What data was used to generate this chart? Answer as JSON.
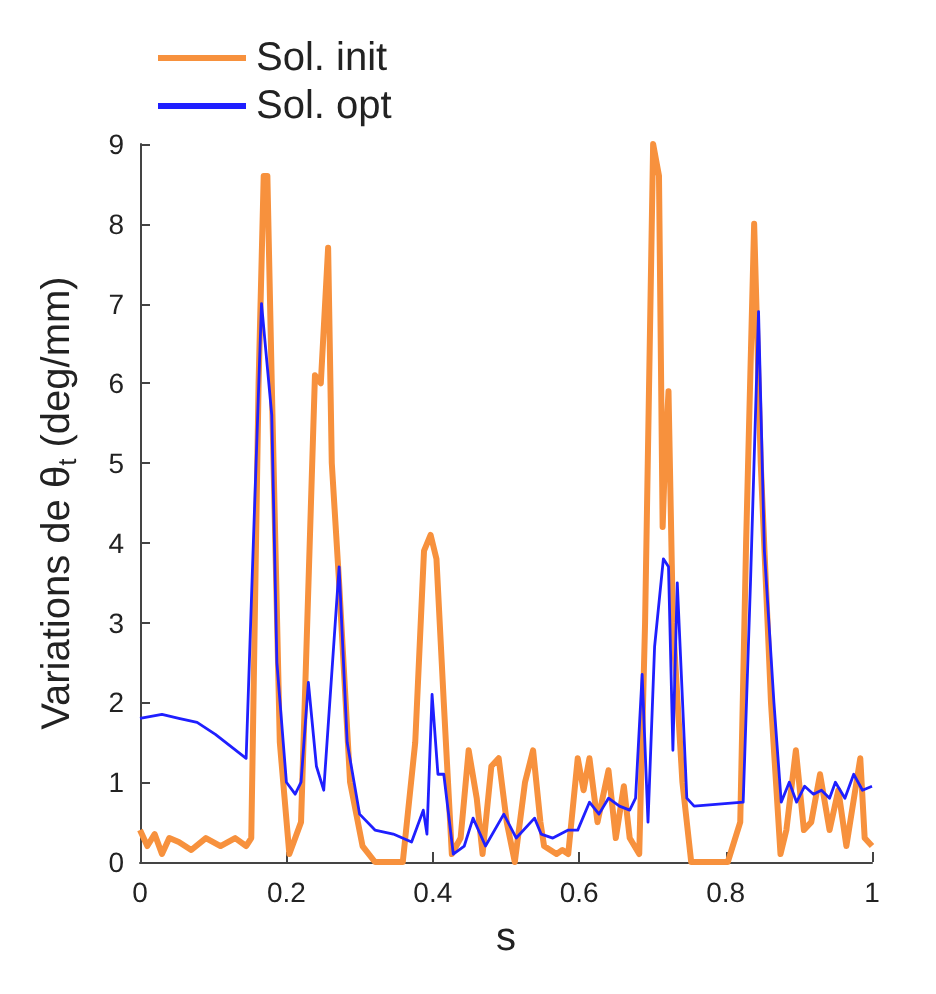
{
  "chart_data": {
    "type": "line",
    "xlabel": "s",
    "ylabel": "Variations de θ$_{t}$ (deg/mm)",
    "xlim": [
      0,
      1
    ],
    "xticks": [
      0,
      0.2,
      0.4,
      0.6,
      0.8,
      1
    ],
    "ylim": [
      0,
      9
    ],
    "yticks": [
      0,
      1,
      2,
      3,
      4,
      5,
      6,
      7,
      8,
      9
    ],
    "grid": false,
    "legend": "top left",
    "marker": "none",
    "line_style": "solid",
    "series": [
      {
        "name": "Sol. init",
        "color": "#f7913d",
        "x": [
          0,
          0.01,
          0.02,
          0.03,
          0.04,
          0.053,
          0.07,
          0.09,
          0.11,
          0.13,
          0.145,
          0.152,
          0.162,
          0.169,
          0.174,
          0.18,
          0.191,
          0.204,
          0.22,
          0.239,
          0.247,
          0.257,
          0.262,
          0.272,
          0.287,
          0.304,
          0.321,
          0.359,
          0.376,
          0.388,
          0.397,
          0.405,
          0.415,
          0.426,
          0.438,
          0.449,
          0.46,
          0.468,
          0.48,
          0.49,
          0.501,
          0.512,
          0.526,
          0.537,
          0.547,
          0.552,
          0.569,
          0.577,
          0.585,
          0.598,
          0.606,
          0.614,
          0.625,
          0.64,
          0.65,
          0.661,
          0.669,
          0.682,
          0.69,
          0.701,
          0.709,
          0.714,
          0.717,
          0.722,
          0.728,
          0.741,
          0.753,
          0.803,
          0.82,
          0.828,
          0.839,
          0.848,
          0.862,
          0.875,
          0.883,
          0.896,
          0.907,
          0.917,
          0.929,
          0.942,
          0.954,
          0.965,
          0.984,
          0.99,
          1
        ],
        "values": [
          0.4,
          0.2,
          0.35,
          0.1,
          0.3,
          0.25,
          0.15,
          0.3,
          0.2,
          0.3,
          0.2,
          0.3,
          6,
          8.6,
          8.6,
          6,
          1.5,
          0.1,
          0.5,
          6.1,
          6,
          7.7,
          5,
          3.5,
          1,
          0.2,
          0,
          0,
          1.5,
          3.9,
          4.1,
          3.8,
          2,
          0.1,
          0.3,
          1.4,
          0.8,
          0.1,
          1.2,
          1.3,
          0.5,
          0,
          1,
          1.4,
          0.5,
          0.2,
          0.1,
          0.15,
          0.1,
          1.3,
          0.9,
          1.3,
          0.5,
          1.15,
          0.3,
          0.95,
          0.3,
          0.1,
          3,
          9,
          8.6,
          4.2,
          5,
          5.9,
          3,
          1,
          0,
          0,
          0.5,
          4,
          8,
          5,
          2,
          0.1,
          0.4,
          1.4,
          0.4,
          0.5,
          1.1,
          0.4,
          0.9,
          0.2,
          1.3,
          0.3,
          0.2
        ]
      },
      {
        "name": "Sol. opt",
        "color": "#1f1fff",
        "x": [
          0,
          0.03,
          0.053,
          0.078,
          0.103,
          0.145,
          0.153,
          0.166,
          0.18,
          0.187,
          0.2,
          0.212,
          0.22,
          0.23,
          0.241,
          0.251,
          0.272,
          0.283,
          0.3,
          0.321,
          0.346,
          0.371,
          0.387,
          0.392,
          0.399,
          0.407,
          0.415,
          0.428,
          0.443,
          0.455,
          0.472,
          0.497,
          0.514,
          0.539,
          0.548,
          0.564,
          0.585,
          0.598,
          0.614,
          0.627,
          0.64,
          0.655,
          0.669,
          0.677,
          0.686,
          0.694,
          0.703,
          0.715,
          0.722,
          0.728,
          0.734,
          0.747,
          0.757,
          0.824,
          0.834,
          0.845,
          0.853,
          0.866,
          0.876,
          0.887,
          0.897,
          0.908,
          0.92,
          0.931,
          0.942,
          0.95,
          0.963,
          0.975,
          0.987,
          1
        ],
        "values": [
          1.8,
          1.85,
          1.8,
          1.75,
          1.6,
          1.3,
          3.5,
          7,
          5.6,
          2.5,
          1,
          0.85,
          1,
          2.25,
          1.2,
          0.9,
          3.7,
          1.5,
          0.6,
          0.4,
          0.35,
          0.25,
          0.65,
          0.35,
          2.1,
          1.1,
          1.1,
          0.1,
          0.2,
          0.55,
          0.2,
          0.6,
          0.3,
          0.55,
          0.35,
          0.3,
          0.4,
          0.4,
          0.75,
          0.6,
          0.8,
          0.7,
          0.65,
          0.8,
          2.35,
          0.5,
          2.7,
          3.8,
          3.7,
          1.4,
          3.5,
          0.8,
          0.7,
          0.75,
          3.5,
          6.9,
          3.9,
          2,
          0.75,
          1,
          0.75,
          0.95,
          0.85,
          0.9,
          0.8,
          1,
          0.8,
          1.1,
          0.9,
          0.95
        ]
      }
    ]
  }
}
